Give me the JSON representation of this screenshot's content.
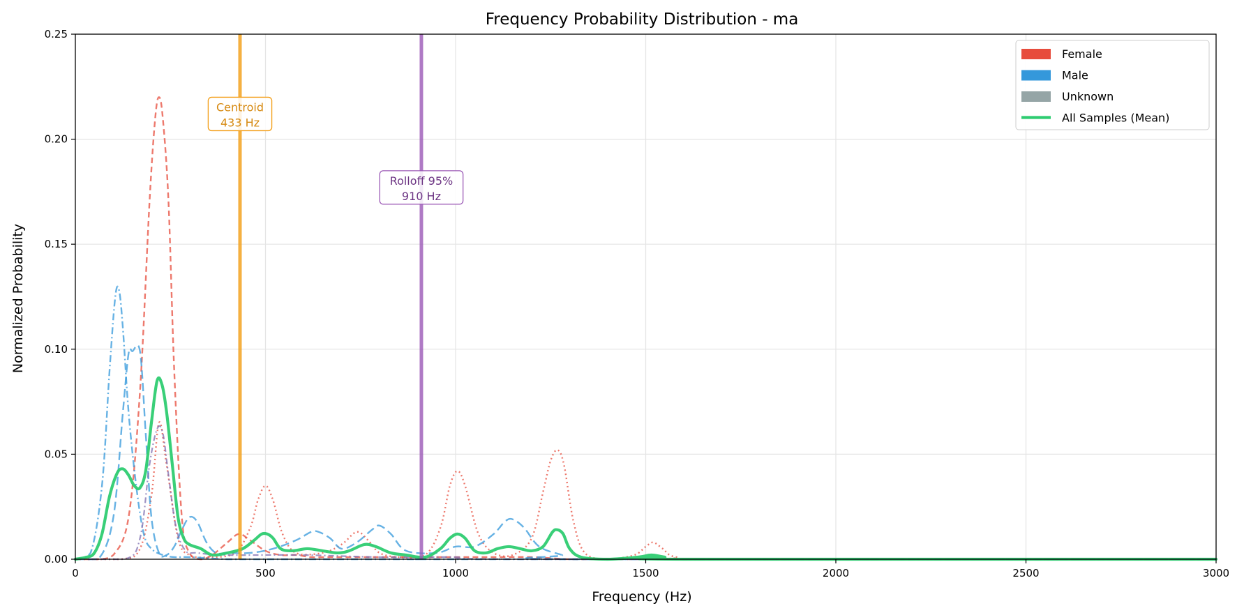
{
  "chart_data": {
    "type": "line",
    "title": "Frequency Probability Distribution - ma",
    "xlabel": "Frequency (Hz)",
    "ylabel": "Normalized Probability",
    "xlim": [
      0,
      3000
    ],
    "ylim": [
      0,
      0.25
    ],
    "xticks": [
      0,
      500,
      1000,
      1500,
      2000,
      2500,
      3000
    ],
    "xtick_labels": [
      "0",
      "500",
      "1000",
      "1500",
      "2000",
      "2500",
      "3000"
    ],
    "yticks": [
      0,
      0.05,
      0.1,
      0.15,
      0.2,
      0.25
    ],
    "ytick_labels": [
      "0.00",
      "0.05",
      "0.10",
      "0.15",
      "0.20",
      "0.25"
    ],
    "grid": true,
    "legend": {
      "placement": "top-right",
      "entries": [
        {
          "label": "Female",
          "color": "#e74c3c",
          "kind": "patch"
        },
        {
          "label": "Male",
          "color": "#3498db",
          "kind": "patch"
        },
        {
          "label": "Unknown",
          "color": "#95a5a6",
          "kind": "patch"
        },
        {
          "label": "All Samples (Mean)",
          "color": "#2ecc71",
          "kind": "line"
        }
      ]
    },
    "series": [
      {
        "group": "Female",
        "color": "#e74c3c",
        "dash": "8,5",
        "width": 2.4,
        "x": [
          0,
          60,
          100,
          140,
          170,
          195,
          210,
          220,
          230,
          245,
          260,
          280,
          300,
          330,
          360,
          400,
          430,
          460,
          500,
          540,
          580,
          620,
          660,
          700,
          750,
          800,
          900,
          1000,
          1100,
          1200,
          1300,
          1400,
          1600,
          3000
        ],
        "y": [
          0,
          0,
          0.002,
          0.02,
          0.08,
          0.17,
          0.21,
          0.22,
          0.21,
          0.17,
          0.09,
          0.02,
          0.003,
          0,
          0.002,
          0.008,
          0.012,
          0.009,
          0.004,
          0.002,
          0.002,
          0.001,
          0.001,
          0.001,
          0.001,
          0.001,
          0.001,
          0.001,
          0.001,
          0.001,
          0,
          0,
          0,
          0
        ]
      },
      {
        "group": "Female",
        "color": "#e74c3c",
        "dash": "2,4",
        "width": 2.4,
        "x": [
          0,
          120,
          170,
          200,
          220,
          240,
          270,
          300,
          350,
          420,
          460,
          480,
          500,
          520,
          545,
          580,
          650,
          700,
          740,
          770,
          800,
          850,
          920,
          960,
          985,
          1005,
          1025,
          1060,
          1100,
          1150,
          1200,
          1230,
          1250,
          1268,
          1285,
          1310,
          1340,
          1400,
          1470,
          1500,
          1520,
          1545,
          1580,
          1700,
          3000
        ],
        "y": [
          0,
          0,
          0.005,
          0.03,
          0.065,
          0.045,
          0.01,
          0.002,
          0.001,
          0.003,
          0.015,
          0.028,
          0.035,
          0.028,
          0.012,
          0.003,
          0.003,
          0.007,
          0.013,
          0.009,
          0.003,
          0.001,
          0.002,
          0.015,
          0.035,
          0.042,
          0.035,
          0.012,
          0.003,
          0.002,
          0.01,
          0.032,
          0.047,
          0.052,
          0.045,
          0.018,
          0.003,
          0,
          0.002,
          0.006,
          0.008,
          0.005,
          0.001,
          0,
          0
        ]
      },
      {
        "group": "Male",
        "color": "#3498db",
        "dash": "10,4,2,4",
        "width": 2.4,
        "x": [
          0,
          40,
          70,
          90,
          105,
          115,
          125,
          140,
          160,
          180,
          200,
          230,
          260,
          300,
          400,
          500,
          700,
          900,
          1100,
          3000
        ],
        "y": [
          0,
          0.003,
          0.035,
          0.09,
          0.125,
          0.128,
          0.11,
          0.07,
          0.035,
          0.012,
          0.005,
          0.002,
          0.001,
          0.001,
          0,
          0,
          0,
          0,
          0,
          0
        ]
      },
      {
        "group": "Male",
        "color": "#3498db",
        "dash": "12,6",
        "width": 2.4,
        "x": [
          0,
          60,
          100,
          125,
          140,
          150,
          170,
          185,
          200,
          220,
          240,
          260,
          280,
          300,
          320,
          345,
          370,
          400,
          460,
          520,
          580,
          620,
          640,
          670,
          700,
          740,
          780,
          800,
          830,
          870,
          950,
          1000,
          1050,
          1100,
          1130,
          1150,
          1180,
          1220,
          1280,
          1320,
          3000
        ],
        "y": [
          0,
          0,
          0.02,
          0.07,
          0.098,
          0.099,
          0.099,
          0.06,
          0.02,
          0.003,
          0.002,
          0.006,
          0.014,
          0.02,
          0.018,
          0.008,
          0.003,
          0.003,
          0.003,
          0.005,
          0.009,
          0.013,
          0.013,
          0.01,
          0.005,
          0.008,
          0.014,
          0.016,
          0.012,
          0.004,
          0.003,
          0.006,
          0.006,
          0.012,
          0.018,
          0.019,
          0.015,
          0.006,
          0.002,
          0,
          0
        ]
      },
      {
        "group": "Unknown",
        "color": "#7f6fb0",
        "dash": "8,4,2,4",
        "width": 2.2,
        "x": [
          0,
          130,
          170,
          195,
          215,
          230,
          245,
          265,
          290,
          320,
          400,
          600,
          800,
          1000,
          1200,
          3000
        ],
        "y": [
          0,
          0,
          0.01,
          0.045,
          0.062,
          0.06,
          0.04,
          0.015,
          0.004,
          0.003,
          0.002,
          0.002,
          0.001,
          0.001,
          0,
          0
        ]
      },
      {
        "group": "All Samples (Mean)",
        "color": "#2ecc71",
        "dash": "",
        "width": 4.2,
        "x": [
          0,
          30,
          50,
          70,
          90,
          110,
          125,
          140,
          155,
          170,
          185,
          200,
          215,
          228,
          240,
          255,
          270,
          285,
          300,
          330,
          360,
          400,
          440,
          470,
          490,
          505,
          520,
          540,
          570,
          610,
          650,
          690,
          720,
          760,
          790,
          830,
          870,
          920,
          960,
          985,
          1005,
          1025,
          1050,
          1080,
          1110,
          1140,
          1170,
          1200,
          1230,
          1255,
          1268,
          1283,
          1300,
          1330,
          1400,
          1480,
          1515,
          1550,
          1600,
          3000
        ],
        "y": [
          0,
          0.001,
          0.003,
          0.012,
          0.03,
          0.041,
          0.043,
          0.04,
          0.035,
          0.034,
          0.042,
          0.065,
          0.085,
          0.083,
          0.07,
          0.045,
          0.02,
          0.01,
          0.007,
          0.005,
          0.002,
          0.003,
          0.005,
          0.009,
          0.012,
          0.012,
          0.01,
          0.005,
          0.004,
          0.005,
          0.004,
          0.003,
          0.004,
          0.007,
          0.006,
          0.003,
          0.002,
          0.001,
          0.005,
          0.01,
          0.012,
          0.01,
          0.004,
          0.003,
          0.005,
          0.006,
          0.005,
          0.004,
          0.006,
          0.013,
          0.014,
          0.012,
          0.005,
          0.001,
          0,
          0.001,
          0.002,
          0.001,
          0,
          0
        ]
      }
    ],
    "annotations": [
      {
        "label_line1": "Centroid",
        "label_line2": "433 Hz",
        "x": 433,
        "color": "#f39c12",
        "text_color": "#d68910",
        "label_y": 0.212
      },
      {
        "label_line1": "Rolloff 95%",
        "label_line2": "910 Hz",
        "x": 910,
        "color": "#9b59b6",
        "text_color": "#6c3483",
        "label_y": 0.177
      }
    ]
  }
}
